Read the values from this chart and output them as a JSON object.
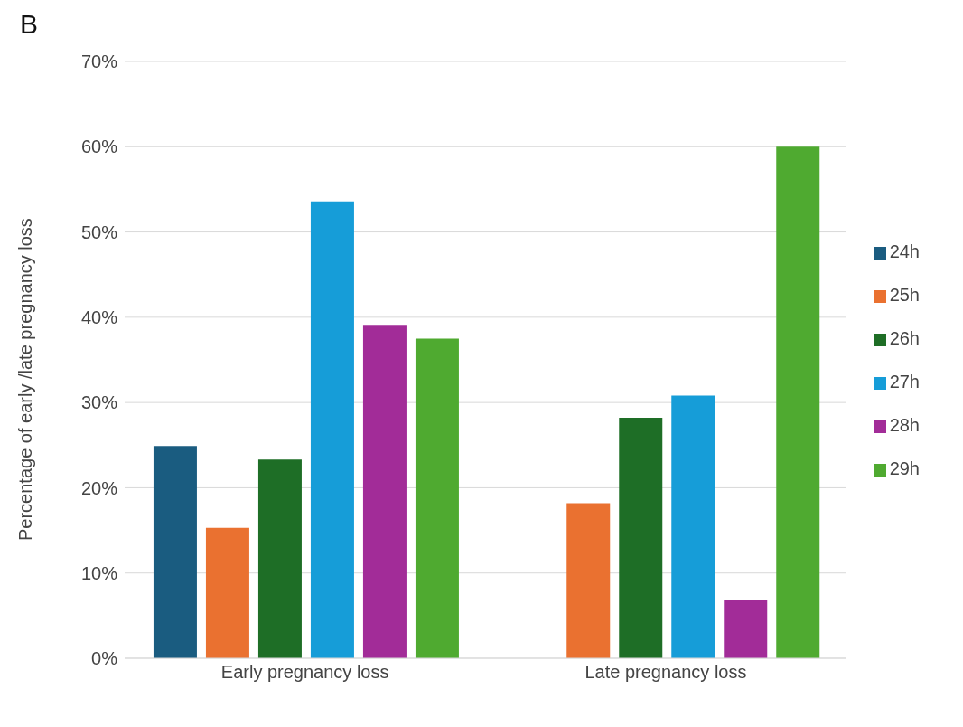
{
  "chart_data": {
    "type": "bar",
    "title": "B",
    "ylabel": "Percentage of early /late pregnancy loss",
    "categories": [
      "Early pregnancy loss",
      "Late pregnancy loss"
    ],
    "series": [
      {
        "name": "24h",
        "color": "#1a5c80",
        "values": [
          24.9,
          0
        ]
      },
      {
        "name": "25h",
        "color": "#ea7130",
        "values": [
          15.3,
          18.2
        ]
      },
      {
        "name": "26h",
        "color": "#1e6e26",
        "values": [
          23.3,
          28.2
        ]
      },
      {
        "name": "27h",
        "color": "#169dd8",
        "values": [
          53.6,
          30.8
        ]
      },
      {
        "name": "28h",
        "color": "#a22c98",
        "values": [
          39.1,
          6.9
        ]
      },
      {
        "name": "29h",
        "color": "#4faa30",
        "values": [
          37.5,
          60
        ]
      }
    ],
    "ylim": [
      0,
      70
    ],
    "yticks": [
      {
        "value": 0,
        "label": "0%"
      },
      {
        "value": 10,
        "label": "10%"
      },
      {
        "value": 20,
        "label": "20%"
      },
      {
        "value": 30,
        "label": "30%"
      },
      {
        "value": 40,
        "label": "40%"
      },
      {
        "value": 50,
        "label": "50%"
      },
      {
        "value": 60,
        "label": "60%"
      },
      {
        "value": 70,
        "label": "70%"
      }
    ],
    "grid": "y",
    "legend": "right"
  }
}
